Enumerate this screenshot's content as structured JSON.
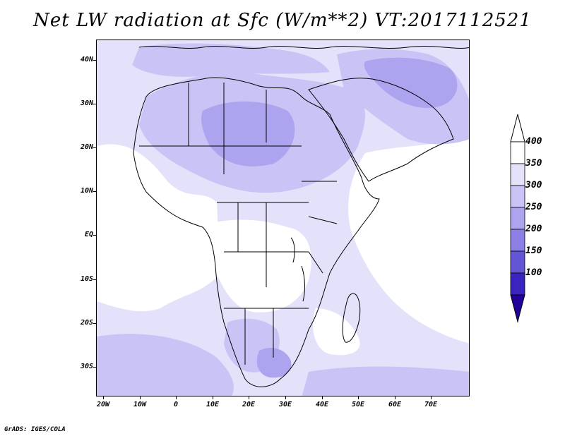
{
  "title": "Net LW radiation at Sfc (W/m**2) VT:2017112521",
  "footer": "GrADS: IGES/COLA",
  "map": {
    "lat_labels": [
      "40N",
      "30N",
      "20N",
      "10N",
      "EQ",
      "10S",
      "20S",
      "30S"
    ],
    "lon_labels": [
      "20W",
      "10W",
      "0",
      "10E",
      "20E",
      "30E",
      "40E",
      "50E",
      "60E",
      "70E"
    ]
  },
  "colorbar": {
    "labels": [
      "400",
      "350",
      "300",
      "250",
      "200",
      "150",
      "100"
    ],
    "colors": [
      "#ffffff",
      "#e4e1fb",
      "#c9c3f6",
      "#ada4ef",
      "#8c80e6",
      "#6454d6",
      "#3a24bf",
      "#23009a"
    ]
  }
}
